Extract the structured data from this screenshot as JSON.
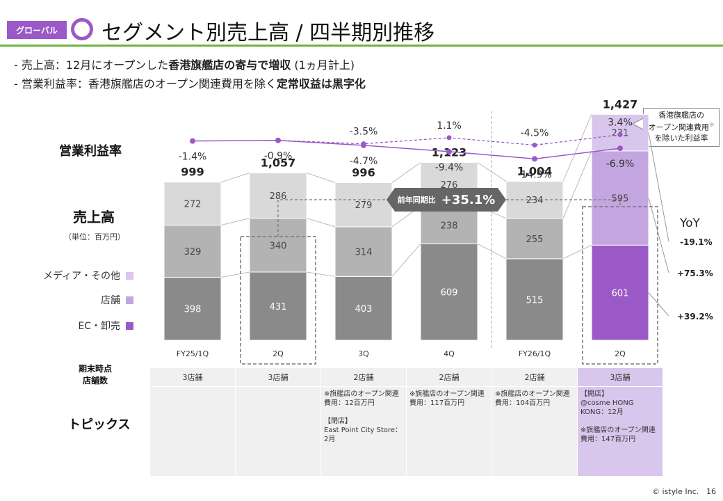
{
  "header": {
    "tag": "グローバル",
    "title": "セグメント別売上高 / 四半期別推移"
  },
  "bullets": [
    {
      "pre": "-  売上高：12月にオープンした",
      "bold": "香港旗艦店の寄与で増収",
      "post": " (1ヵ月計上)"
    },
    {
      "pre": "-  営業利益率：香港旗艦店のオープン関連費用を除く",
      "bold": "定常収益は黒字化",
      "post": ""
    }
  ],
  "labels": {
    "margin_row": "営業利益率",
    "sales_row": "売上高",
    "unit": "（単位：百万円）",
    "stores_row_line1": "期末時点",
    "stores_row_line2": "店舗数",
    "topics_row": "トピックス",
    "yoy_header": "YoY",
    "note_line1": "香港旗艦店の",
    "note_line2": "オープン関連費用",
    "note_mark": "※",
    "note_line3": "を除いた利益率",
    "badge_small": "前年同期比",
    "badge_big": "+35.1%"
  },
  "legend": [
    {
      "label": "メディア・その他",
      "color": "#d9c6ec"
    },
    {
      "label": "店舗",
      "color": "#c3a6e0"
    },
    {
      "label": "EC・卸売",
      "color": "#9b59c7"
    }
  ],
  "chart_data": [
    {
      "type": "line",
      "categories": [
        "FY25/1Q",
        "2Q",
        "3Q",
        "4Q",
        "FY26/1Q",
        "2Q"
      ],
      "series": [
        {
          "values": [
            -1.4,
            -0.9,
            -4.7,
            -9.4,
            -14.9,
            -6.9
          ],
          "labels": [
            "-1.4%",
            "-0.9%",
            "-4.7%",
            "-9.4%",
            "-14.9%",
            "-6.9%"
          ],
          "style": "solid"
        },
        {
          "values": [
            null,
            null,
            -3.5,
            1.1,
            -4.5,
            3.4
          ],
          "labels": [
            "",
            "",
            "-3.5%",
            "1.1%",
            "-4.5%",
            "3.4%"
          ],
          "style": "dashed"
        }
      ],
      "color": "#9b59c7"
    },
    {
      "type": "bar",
      "stacked": true,
      "categories": [
        "FY25/1Q",
        "2Q",
        "3Q",
        "4Q",
        "FY26/1Q",
        "2Q"
      ],
      "series": [
        {
          "name": "EC・卸売",
          "values": [
            398,
            431,
            403,
            609,
            515,
            601
          ]
        },
        {
          "name": "店舗",
          "values": [
            329,
            340,
            314,
            238,
            255,
            595
          ]
        },
        {
          "name": "メディア・その他",
          "values": [
            272,
            286,
            279,
            276,
            234,
            231
          ]
        }
      ],
      "totals": [
        "999",
        "1,057",
        "996",
        "1,123",
        "1,004",
        "1,427"
      ],
      "yoy": [
        "-19.1%",
        "+75.3%",
        "+39.2%"
      ],
      "colors_normal": [
        "#8a8a8a",
        "#b3b3b3",
        "#d9d9d9"
      ],
      "colors_highlight": [
        "#9b59c7",
        "#c3a6e0",
        "#d9c6ec"
      ]
    }
  ],
  "table": {
    "stores": [
      "3店舗",
      "3店舗",
      "2店舗",
      "2店舗",
      "2店舗",
      "3店舗"
    ],
    "topics": [
      "",
      "",
      "※旗艦店のオープン関連費用：12百万円\n\n【閉店】\nEast Point City Store：2月",
      "※旗艦店のオープン関連費用：117百万円",
      "※旗艦店のオープン関連費用：104百万円",
      "【開店】\n@cosme HONG KONG：12月\n\n※旗艦店のオープン関連費用：147百万円"
    ]
  },
  "footer": {
    "copyright": "© istyle Inc.",
    "page": "16"
  }
}
